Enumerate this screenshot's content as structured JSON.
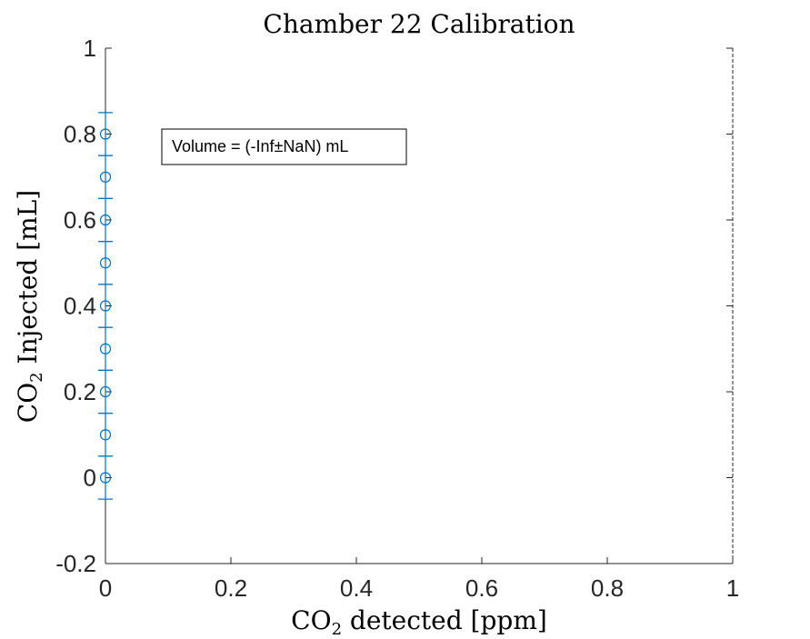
{
  "chart_data": {
    "type": "scatter",
    "title": "Chamber 22 Calibration",
    "xlabel": {
      "base": "CO",
      "sub": "2",
      "rest": " detected [ppm]"
    },
    "ylabel": {
      "base": "CO",
      "sub": "2",
      "rest": " Injected [mL]"
    },
    "xlim": [
      0,
      1
    ],
    "ylim": [
      -0.2,
      1
    ],
    "xticks": [
      "0",
      "0.2",
      "0.4",
      "0.6",
      "0.8",
      "1"
    ],
    "yticks": [
      "-0.2",
      "0",
      "0.2",
      "0.4",
      "0.6",
      "0.8",
      "1"
    ],
    "grid": false,
    "series": [
      {
        "marker": "circle",
        "error_bars": "horizontal",
        "x": [
          0,
          0,
          0,
          0,
          0,
          0,
          0,
          0,
          0
        ],
        "y": [
          0,
          0.1,
          0.2,
          0.3,
          0.4,
          0.5,
          0.6,
          0.7,
          0.8
        ],
        "y_error": [
          0.05,
          0.05,
          0.05,
          0.05,
          0.05,
          0.05,
          0.05,
          0.05,
          0.05
        ]
      }
    ],
    "annotation": "Volume = (-Inf±NaN) mL",
    "colors": {
      "series": "#0072BD",
      "axes": "#262626"
    }
  }
}
